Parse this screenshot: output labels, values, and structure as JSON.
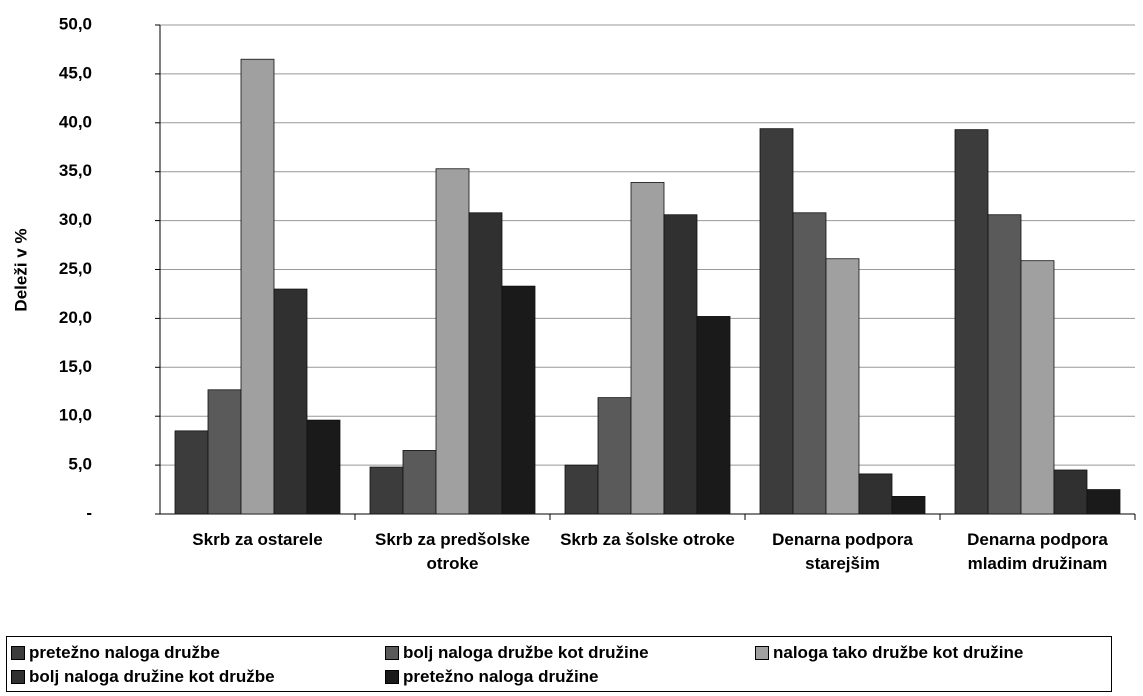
{
  "chart_data": {
    "type": "bar",
    "y_label": "Deleži v %",
    "categories": [
      "Skrb za ostarele",
      "Skrb za predšolske otroke",
      "Skrb za šolske otroke",
      "Denarna podpora starejšim",
      "Denarna podpora mladim družinam"
    ],
    "series": [
      {
        "name": "pretežno naloga družbe",
        "color": "#3c3c3c",
        "values": [
          8.5,
          4.8,
          5.0,
          39.4,
          39.3
        ]
      },
      {
        "name": "bolj naloga družbe kot družine",
        "color": "#5a5a5a",
        "values": [
          12.7,
          6.5,
          11.9,
          30.8,
          30.6
        ]
      },
      {
        "name": "naloga tako družbe kot družine",
        "color": "#a0a0a0",
        "values": [
          46.5,
          35.3,
          33.9,
          26.1,
          25.9
        ]
      },
      {
        "name": "bolj naloga družine kot družbe",
        "color": "#303030",
        "values": [
          23.0,
          30.8,
          30.6,
          4.1,
          4.5
        ]
      },
      {
        "name": "pretežno naloga družine",
        "color": "#1a1a1a",
        "values": [
          9.6,
          23.3,
          20.2,
          1.8,
          2.5
        ]
      }
    ],
    "ylim": [
      0,
      50
    ],
    "yticks": [
      {
        "value": 0,
        "label": "-"
      },
      {
        "value": 5,
        "label": "5,0"
      },
      {
        "value": 10,
        "label": "10,0"
      },
      {
        "value": 15,
        "label": "15,0"
      },
      {
        "value": 20,
        "label": "20,0"
      },
      {
        "value": 25,
        "label": "25,0"
      },
      {
        "value": 30,
        "label": "30,0"
      },
      {
        "value": 35,
        "label": "35,0"
      },
      {
        "value": 40,
        "label": "40,0"
      },
      {
        "value": 45,
        "label": "45,0"
      },
      {
        "value": 50,
        "label": "50,0"
      }
    ],
    "grid": true
  }
}
